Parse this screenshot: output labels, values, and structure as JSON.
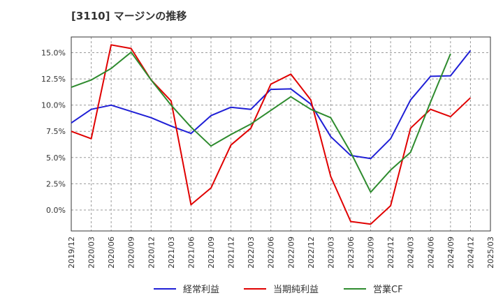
{
  "chart_title": "[3110]  マージンの推移",
  "chart_data": {
    "type": "line",
    "title": "[3110]  マージンの推移",
    "x": [
      "2019/12",
      "2020/03",
      "2020/06",
      "2020/09",
      "2020/12",
      "2021/03",
      "2021/06",
      "2021/09",
      "2021/12",
      "2022/03",
      "2022/06",
      "2022/09",
      "2022/12",
      "2023/03",
      "2023/06",
      "2023/09",
      "2023/12",
      "2024/03",
      "2024/06",
      "2024/09",
      "2024/12",
      "2025/03"
    ],
    "yticks": [
      "0.0%",
      "2.5%",
      "5.0%",
      "7.5%",
      "10.0%",
      "12.5%",
      "15.0%"
    ],
    "ylim": [
      -2.0,
      16.5
    ],
    "grid": true,
    "legend_position": "bottom",
    "series": [
      {
        "name": "経常利益",
        "color": "#1f1fd6",
        "values": [
          8.3,
          9.6,
          10.0,
          9.4,
          8.8,
          8.0,
          7.3,
          9.0,
          9.8,
          9.6,
          11.5,
          11.55,
          10.1,
          7.0,
          5.2,
          4.9,
          6.8,
          10.5,
          12.75,
          12.8,
          15.2,
          null
        ]
      },
      {
        "name": "当期純利益",
        "color": "#e00000",
        "values": [
          7.5,
          6.8,
          15.75,
          15.4,
          12.4,
          10.4,
          0.5,
          2.1,
          6.2,
          7.8,
          12.0,
          12.95,
          10.5,
          3.2,
          -1.1,
          -1.35,
          0.4,
          7.8,
          9.6,
          8.9,
          10.7,
          null
        ]
      },
      {
        "name": "営業CF",
        "color": "#2e8b2e",
        "values": [
          11.7,
          12.4,
          13.5,
          15.05,
          12.4,
          10.0,
          7.9,
          6.1,
          7.2,
          8.2,
          9.5,
          10.8,
          9.6,
          8.8,
          5.5,
          1.7,
          3.8,
          5.5,
          10.3,
          14.9,
          null,
          null
        ]
      }
    ]
  }
}
